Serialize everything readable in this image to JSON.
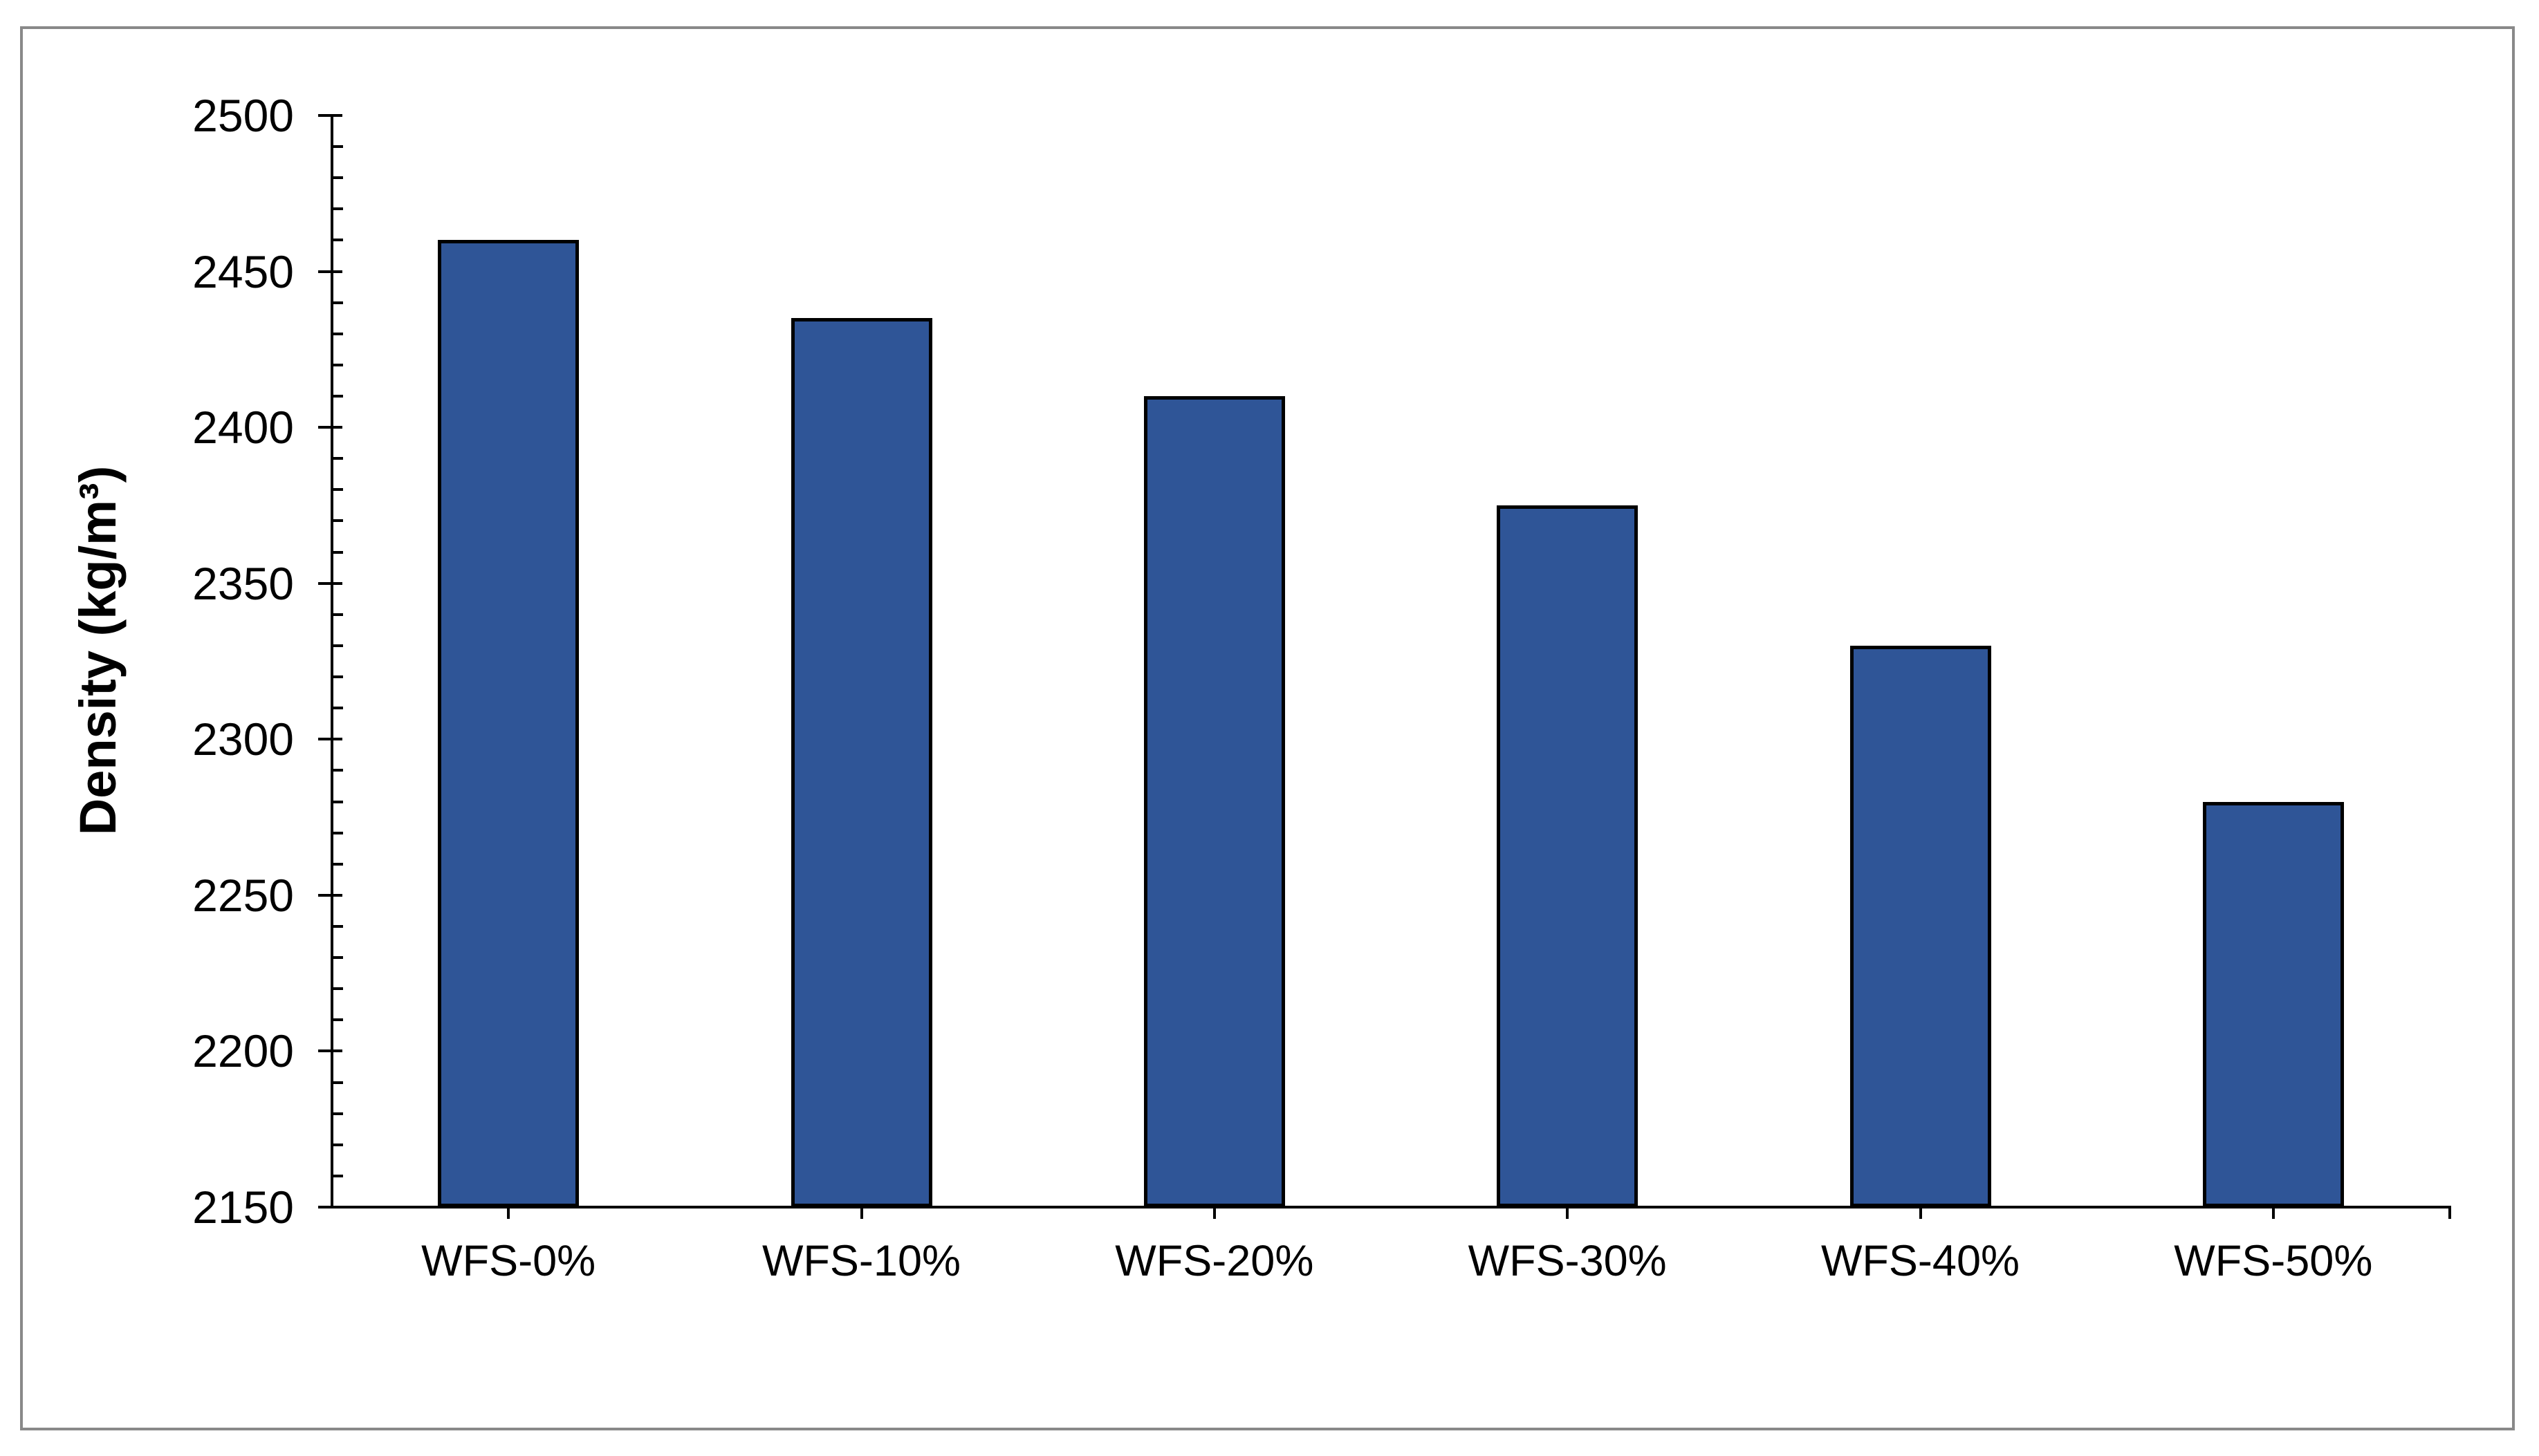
{
  "chart_data": {
    "type": "bar",
    "title": "",
    "xlabel": "",
    "ylabel": "Density (kg/m³)",
    "categories": [
      "WFS-0%",
      "WFS-10%",
      "WFS-20%",
      "WFS-30%",
      "WFS-40%",
      "WFS-50%"
    ],
    "values": [
      2460,
      2435,
      2410,
      2375,
      2330,
      2280
    ],
    "ylim": [
      2150,
      2500
    ],
    "ytick_step": 50,
    "yticks": [
      2150,
      2200,
      2250,
      2300,
      2350,
      2400,
      2450,
      2500
    ],
    "minor_tick_step": 10,
    "grid": false,
    "legend_position": "none",
    "bar_color": "#2F5597",
    "bar_border_color": "#000000",
    "axis_color": "#000000",
    "frame_border_color": "#898989",
    "background_color": "#FFFFFF"
  }
}
